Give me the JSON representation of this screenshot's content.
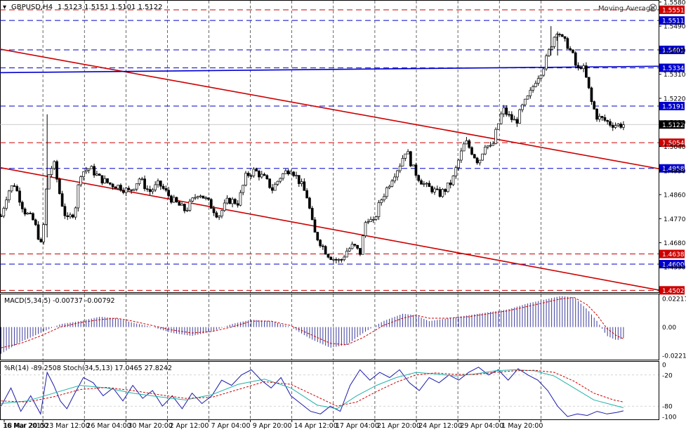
{
  "chart_data": {
    "type": "candlestick",
    "symbol_label": "GBPUSD,H4",
    "ohlc_label": "1.5123 1.5151 1.5101 1.5122",
    "indicator_name": "Moving Average",
    "price_axis": {
      "ylim": [
        1.4495,
        1.5585
      ],
      "ticks": [
        "1.5580",
        "1.5490",
        "1.5400",
        "1.5310",
        "1.5220",
        "1.5130",
        "1.5040",
        "1.4950",
        "1.4860",
        "1.4770",
        "1.4680",
        "1.4590"
      ]
    },
    "x_axis": {
      "labels": [
        "16 Mar 2015",
        "18 Mar 20:00",
        "23 Mar 12:00",
        "26 Mar 04:00",
        "30 Mar 20:00",
        "2 Apr 12:00",
        "7 Apr 04:00",
        "9 Apr 20:00",
        "14 Apr 12:00",
        "17 Apr 04:00",
        "21 Apr 20:00",
        "24 Apr 12:00",
        "29 Apr 04:00",
        "1 May 20:00"
      ]
    },
    "current_price": {
      "value": 1.5122,
      "label": "1.5122"
    },
    "levels": [
      {
        "value": 1.5551,
        "label": "1.5551",
        "color": "#cc0000"
      },
      {
        "value": 1.5511,
        "label": "1.5511",
        "color": "#0000cc"
      },
      {
        "value": 1.5401,
        "label": "1.5401",
        "color": "#0000cc"
      },
      {
        "value": 1.5334,
        "label": "1.5334",
        "color": "#0000cc"
      },
      {
        "value": 1.5191,
        "label": "1.5191",
        "color": "#0000cc"
      },
      {
        "value": 1.5054,
        "label": "1.5054",
        "color": "#cc0000"
      },
      {
        "value": 1.4958,
        "label": "1.4958",
        "color": "#0000cc"
      },
      {
        "value": 1.4638,
        "label": "1.4638",
        "color": "#cc0000"
      },
      {
        "value": 1.46,
        "label": "1.4600",
        "color": "#0000cc"
      },
      {
        "value": 1.4502,
        "label": "1.4502",
        "color": "#cc0000"
      }
    ],
    "trendlines": [
      {
        "color": "#cc0000",
        "from": [
          0,
          1.5404
        ],
        "to": [
          1,
          1.4957
        ]
      },
      {
        "color": "#cc0000",
        "from": [
          0,
          1.4961
        ],
        "to": [
          1,
          1.4503
        ]
      },
      {
        "color": "#0000cc",
        "from": [
          0,
          1.5316
        ],
        "to": [
          1,
          1.534
        ]
      }
    ],
    "close_path": [
      [
        0.0,
        1.478
      ],
      [
        0.01,
        1.487
      ],
      [
        0.02,
        1.49
      ],
      [
        0.035,
        1.48
      ],
      [
        0.05,
        1.476
      ],
      [
        0.062,
        1.466
      ],
      [
        0.07,
        1.492
      ],
      [
        0.08,
        1.498
      ],
      [
        0.09,
        1.485
      ],
      [
        0.1,
        1.476
      ],
      [
        0.112,
        1.48
      ],
      [
        0.12,
        1.494
      ],
      [
        0.135,
        1.496
      ],
      [
        0.15,
        1.492
      ],
      [
        0.165,
        1.49
      ],
      [
        0.18,
        1.489
      ],
      [
        0.195,
        1.487
      ],
      [
        0.21,
        1.492
      ],
      [
        0.225,
        1.487
      ],
      [
        0.24,
        1.49
      ],
      [
        0.26,
        1.484
      ],
      [
        0.28,
        1.48
      ],
      [
        0.3,
        1.487
      ],
      [
        0.315,
        1.483
      ],
      [
        0.33,
        1.478
      ],
      [
        0.345,
        1.484
      ],
      [
        0.36,
        1.483
      ],
      [
        0.372,
        1.493
      ],
      [
        0.385,
        1.495
      ],
      [
        0.4,
        1.492
      ],
      [
        0.412,
        1.488
      ],
      [
        0.425,
        1.493
      ],
      [
        0.44,
        1.496
      ],
      [
        0.455,
        1.49
      ],
      [
        0.465,
        1.485
      ],
      [
        0.475,
        1.472
      ],
      [
        0.485,
        1.468
      ],
      [
        0.495,
        1.464
      ],
      [
        0.505,
        1.462
      ],
      [
        0.515,
        1.461
      ],
      [
        0.525,
        1.465
      ],
      [
        0.535,
        1.467
      ],
      [
        0.545,
        1.464
      ],
      [
        0.555,
        1.478
      ],
      [
        0.565,
        1.475
      ],
      [
        0.575,
        1.483
      ],
      [
        0.585,
        1.488
      ],
      [
        0.595,
        1.493
      ],
      [
        0.605,
        1.497
      ],
      [
        0.615,
        1.503
      ],
      [
        0.625,
        1.496
      ],
      [
        0.635,
        1.492
      ],
      [
        0.645,
        1.489
      ],
      [
        0.655,
        1.488
      ],
      [
        0.665,
        1.486
      ],
      [
        0.675,
        1.488
      ],
      [
        0.685,
        1.491
      ],
      [
        0.695,
        1.499
      ],
      [
        0.705,
        1.506
      ],
      [
        0.715,
        1.502
      ],
      [
        0.725,
        1.498
      ],
      [
        0.735,
        1.505
      ],
      [
        0.745,
        1.503
      ],
      [
        0.752,
        1.51
      ],
      [
        0.762,
        1.518
      ],
      [
        0.772,
        1.515
      ],
      [
        0.782,
        1.513
      ],
      [
        0.792,
        1.519
      ],
      [
        0.802,
        1.523
      ],
      [
        0.812,
        1.529
      ],
      [
        0.822,
        1.533
      ],
      [
        0.83,
        1.538
      ],
      [
        0.838,
        1.544
      ],
      [
        0.845,
        1.548
      ],
      [
        0.852,
        1.544
      ],
      [
        0.86,
        1.542
      ],
      [
        0.868,
        1.538
      ],
      [
        0.875,
        1.532
      ],
      [
        0.882,
        1.535
      ],
      [
        0.89,
        1.528
      ],
      [
        0.897,
        1.52
      ],
      [
        0.905,
        1.515
      ],
      [
        0.915,
        1.514
      ],
      [
        0.925,
        1.5125
      ],
      [
        0.935,
        1.512
      ],
      [
        0.945,
        1.5122
      ]
    ],
    "macd": {
      "label": "MACD(5,34,5) -0.00737 -0.00792",
      "ylim": [
        -0.022,
        0.0221
      ],
      "ticks": [
        "0.02217",
        "0.00",
        "-0.02210"
      ],
      "hist_path": [
        [
          0.0,
          -0.018
        ],
        [
          0.03,
          -0.01
        ],
        [
          0.06,
          -0.004
        ],
        [
          0.09,
          0.002
        ],
        [
          0.12,
          0.004
        ],
        [
          0.15,
          0.007
        ],
        [
          0.175,
          0.006
        ],
        [
          0.2,
          0.003
        ],
        [
          0.23,
          0.0
        ],
        [
          0.26,
          -0.004
        ],
        [
          0.29,
          -0.006
        ],
        [
          0.32,
          -0.003
        ],
        [
          0.35,
          0.002
        ],
        [
          0.38,
          0.005
        ],
        [
          0.41,
          0.004
        ],
        [
          0.44,
          0.0
        ],
        [
          0.47,
          -0.008
        ],
        [
          0.5,
          -0.014
        ],
        [
          0.525,
          -0.012
        ],
        [
          0.55,
          -0.004
        ],
        [
          0.58,
          0.004
        ],
        [
          0.61,
          0.009
        ],
        [
          0.63,
          0.008
        ],
        [
          0.65,
          0.004
        ],
        [
          0.68,
          0.006
        ],
        [
          0.71,
          0.008
        ],
        [
          0.74,
          0.01
        ],
        [
          0.77,
          0.012
        ],
        [
          0.8,
          0.016
        ],
        [
          0.83,
          0.019
        ],
        [
          0.85,
          0.021
        ],
        [
          0.87,
          0.02
        ],
        [
          0.89,
          0.012
        ],
        [
          0.905,
          0.004
        ],
        [
          0.92,
          -0.006
        ],
        [
          0.935,
          -0.009
        ],
        [
          0.945,
          -0.0074
        ]
      ],
      "signal_path": [
        [
          0.0,
          -0.014
        ],
        [
          0.03,
          -0.011
        ],
        [
          0.06,
          -0.006
        ],
        [
          0.09,
          0.0
        ],
        [
          0.12,
          0.003
        ],
        [
          0.15,
          0.005
        ],
        [
          0.175,
          0.006
        ],
        [
          0.2,
          0.004
        ],
        [
          0.23,
          0.001
        ],
        [
          0.26,
          -0.002
        ],
        [
          0.29,
          -0.004
        ],
        [
          0.32,
          -0.003
        ],
        [
          0.35,
          0.0
        ],
        [
          0.38,
          0.004
        ],
        [
          0.41,
          0.004
        ],
        [
          0.44,
          0.001
        ],
        [
          0.47,
          -0.005
        ],
        [
          0.5,
          -0.011
        ],
        [
          0.525,
          -0.012
        ],
        [
          0.55,
          -0.007
        ],
        [
          0.58,
          0.001
        ],
        [
          0.61,
          0.006
        ],
        [
          0.63,
          0.008
        ],
        [
          0.65,
          0.006
        ],
        [
          0.68,
          0.006
        ],
        [
          0.71,
          0.007
        ],
        [
          0.74,
          0.009
        ],
        [
          0.77,
          0.011
        ],
        [
          0.8,
          0.014
        ],
        [
          0.83,
          0.017
        ],
        [
          0.85,
          0.019
        ],
        [
          0.87,
          0.02
        ],
        [
          0.89,
          0.015
        ],
        [
          0.905,
          0.008
        ],
        [
          0.92,
          -0.001
        ],
        [
          0.935,
          -0.006
        ],
        [
          0.945,
          -0.0079
        ]
      ]
    },
    "oscillators": {
      "label": "%R(14) -89.2508  Stoch(34,5,13) 17.0465 27.8242",
      "ylim": [
        -100,
        0
      ],
      "ticks": [
        "0",
        "-20",
        "-80",
        "-100"
      ],
      "wpr_path": [
        [
          0.0,
          -80
        ],
        [
          0.015,
          -45
        ],
        [
          0.03,
          -90
        ],
        [
          0.045,
          -60
        ],
        [
          0.06,
          -95
        ],
        [
          0.07,
          -15
        ],
        [
          0.08,
          -40
        ],
        [
          0.09,
          -70
        ],
        [
          0.1,
          -85
        ],
        [
          0.11,
          -60
        ],
        [
          0.125,
          -25
        ],
        [
          0.14,
          -35
        ],
        [
          0.155,
          -60
        ],
        [
          0.17,
          -45
        ],
        [
          0.185,
          -70
        ],
        [
          0.2,
          -40
        ],
        [
          0.215,
          -65
        ],
        [
          0.23,
          -50
        ],
        [
          0.245,
          -80
        ],
        [
          0.26,
          -60
        ],
        [
          0.275,
          -85
        ],
        [
          0.29,
          -55
        ],
        [
          0.305,
          -75
        ],
        [
          0.32,
          -60
        ],
        [
          0.335,
          -30
        ],
        [
          0.35,
          -40
        ],
        [
          0.365,
          -20
        ],
        [
          0.38,
          -10
        ],
        [
          0.395,
          -30
        ],
        [
          0.41,
          -45
        ],
        [
          0.425,
          -25
        ],
        [
          0.44,
          -60
        ],
        [
          0.455,
          -75
        ],
        [
          0.47,
          -90
        ],
        [
          0.485,
          -95
        ],
        [
          0.5,
          -80
        ],
        [
          0.515,
          -90
        ],
        [
          0.53,
          -40
        ],
        [
          0.545,
          -10
        ],
        [
          0.56,
          -30
        ],
        [
          0.575,
          -15
        ],
        [
          0.59,
          -25
        ],
        [
          0.605,
          -10
        ],
        [
          0.62,
          -35
        ],
        [
          0.635,
          -50
        ],
        [
          0.65,
          -25
        ],
        [
          0.665,
          -35
        ],
        [
          0.68,
          -20
        ],
        [
          0.695,
          -30
        ],
        [
          0.71,
          -15
        ],
        [
          0.725,
          -5
        ],
        [
          0.74,
          -20
        ],
        [
          0.755,
          -10
        ],
        [
          0.77,
          -30
        ],
        [
          0.785,
          -8
        ],
        [
          0.8,
          -20
        ],
        [
          0.815,
          -30
        ],
        [
          0.83,
          -50
        ],
        [
          0.845,
          -80
        ],
        [
          0.86,
          -100
        ],
        [
          0.875,
          -95
        ],
        [
          0.89,
          -98
        ],
        [
          0.905,
          -90
        ],
        [
          0.92,
          -95
        ],
        [
          0.935,
          -92
        ],
        [
          0.945,
          -89
        ]
      ],
      "stoch_main_path": [
        [
          0.0,
          -75
        ],
        [
          0.04,
          -70
        ],
        [
          0.08,
          -55
        ],
        [
          0.12,
          -40
        ],
        [
          0.16,
          -45
        ],
        [
          0.2,
          -55
        ],
        [
          0.24,
          -62
        ],
        [
          0.28,
          -68
        ],
        [
          0.32,
          -58
        ],
        [
          0.36,
          -38
        ],
        [
          0.4,
          -28
        ],
        [
          0.44,
          -45
        ],
        [
          0.48,
          -78
        ],
        [
          0.51,
          -85
        ],
        [
          0.54,
          -60
        ],
        [
          0.57,
          -40
        ],
        [
          0.6,
          -25
        ],
        [
          0.63,
          -15
        ],
        [
          0.66,
          -18
        ],
        [
          0.69,
          -22
        ],
        [
          0.72,
          -18
        ],
        [
          0.75,
          -12
        ],
        [
          0.78,
          -10
        ],
        [
          0.81,
          -12
        ],
        [
          0.84,
          -22
        ],
        [
          0.87,
          -45
        ],
        [
          0.9,
          -68
        ],
        [
          0.93,
          -78
        ],
        [
          0.945,
          -83
        ]
      ],
      "stoch_signal_path": [
        [
          0.0,
          -70
        ],
        [
          0.04,
          -72
        ],
        [
          0.08,
          -62
        ],
        [
          0.12,
          -48
        ],
        [
          0.16,
          -44
        ],
        [
          0.2,
          -50
        ],
        [
          0.24,
          -58
        ],
        [
          0.28,
          -65
        ],
        [
          0.32,
          -63
        ],
        [
          0.36,
          -48
        ],
        [
          0.4,
          -33
        ],
        [
          0.44,
          -38
        ],
        [
          0.48,
          -62
        ],
        [
          0.51,
          -80
        ],
        [
          0.54,
          -72
        ],
        [
          0.57,
          -52
        ],
        [
          0.6,
          -34
        ],
        [
          0.63,
          -20
        ],
        [
          0.66,
          -16
        ],
        [
          0.69,
          -19
        ],
        [
          0.72,
          -19
        ],
        [
          0.75,
          -15
        ],
        [
          0.78,
          -12
        ],
        [
          0.81,
          -11
        ],
        [
          0.84,
          -15
        ],
        [
          0.87,
          -32
        ],
        [
          0.9,
          -55
        ],
        [
          0.93,
          -68
        ],
        [
          0.945,
          -72
        ]
      ]
    }
  }
}
